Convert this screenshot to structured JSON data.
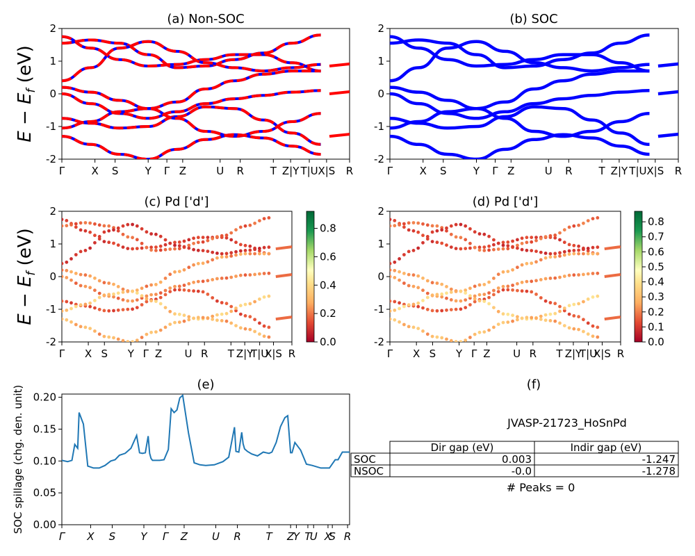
{
  "material_id": "JVASP-21723_HoSnPd",
  "kpath_labels": [
    "Γ",
    "X",
    "S",
    "Y",
    "Γ",
    "Z",
    "U",
    "R",
    "T",
    "Z|Y",
    "T|U",
    "X|S",
    "R"
  ],
  "kpath_labels_spillage": [
    "Γ",
    "X",
    "S",
    "Y",
    "Γ",
    "Z",
    "U",
    "R",
    "T",
    "Z",
    "Y",
    "T",
    "U",
    "X",
    "S",
    "R"
  ],
  "energy_ylabel_main": "E − E",
  "energy_ylabel_sub": "f",
  "energy_ylabel_unit": " (eV)",
  "energy_yticks": [
    2,
    1,
    0,
    -1,
    -2
  ],
  "colors": {
    "nsoc": "#ff0000",
    "soc": "#0000ff",
    "spillage": "#1f77b4"
  },
  "chart_data": [
    {
      "type": "line",
      "title": "(a) Non-SOC",
      "ylim": [
        -2,
        2
      ],
      "series": [
        {
          "values": [
            1.75,
            1.4,
            1.05,
            0.85,
            0.9,
            1.05,
            1.2,
            1.2,
            0.95,
            0.7
          ]
        },
        {
          "values": [
            1.55,
            1.65,
            1.55,
            1.2,
            0.8,
            0.85,
            1.05,
            1.25,
            1.55,
            1.8
          ]
        },
        {
          "values": [
            0.4,
            0.8,
            1.4,
            1.6,
            1.3,
            0.95,
            0.8,
            0.7,
            0.8,
            0.9
          ]
        },
        {
          "values": [
            0.2,
            0.05,
            -0.2,
            -0.45,
            -0.25,
            0.15,
            0.4,
            0.6,
            0.7,
            0.7
          ]
        },
        {
          "values": [
            0.0,
            -0.3,
            -0.6,
            -0.75,
            -0.55,
            -0.3,
            -0.15,
            -0.05,
            0.05,
            0.1
          ]
        },
        {
          "values": [
            -0.75,
            -0.9,
            -1.05,
            -1.0,
            -0.7,
            -0.4,
            -0.45,
            -0.8,
            -1.2,
            -1.55
          ]
        },
        {
          "values": [
            -1.05,
            -0.85,
            -0.55,
            -0.45,
            -0.75,
            -1.15,
            -1.3,
            -1.15,
            -0.85,
            -0.6
          ]
        },
        {
          "values": [
            -1.3,
            -1.55,
            -1.85,
            -2.0,
            -1.7,
            -1.4,
            -1.25,
            -1.35,
            -1.6,
            -1.85
          ]
        }
      ]
    },
    {
      "type": "line",
      "title": "(b) SOC",
      "ylim": [
        -2,
        2
      ],
      "series": [
        {
          "values": [
            1.75,
            1.4,
            1.05,
            0.85,
            0.9,
            1.05,
            1.2,
            1.2,
            0.95,
            0.7
          ]
        },
        {
          "values": [
            1.55,
            1.65,
            1.55,
            1.2,
            0.8,
            0.85,
            1.05,
            1.25,
            1.55,
            1.8
          ]
        },
        {
          "values": [
            0.4,
            0.8,
            1.4,
            1.6,
            1.3,
            0.95,
            0.8,
            0.7,
            0.8,
            0.9
          ]
        },
        {
          "values": [
            0.2,
            0.05,
            -0.2,
            -0.45,
            -0.25,
            0.15,
            0.4,
            0.6,
            0.7,
            0.7
          ]
        },
        {
          "values": [
            0.0,
            -0.3,
            -0.6,
            -0.75,
            -0.55,
            -0.3,
            -0.15,
            -0.05,
            0.05,
            0.1
          ]
        },
        {
          "values": [
            -0.75,
            -0.9,
            -1.05,
            -1.0,
            -0.7,
            -0.4,
            -0.45,
            -0.8,
            -1.2,
            -1.55
          ]
        },
        {
          "values": [
            -1.05,
            -0.85,
            -0.55,
            -0.45,
            -0.75,
            -1.15,
            -1.3,
            -1.15,
            -0.85,
            -0.6
          ]
        },
        {
          "values": [
            -1.3,
            -1.55,
            -1.85,
            -2.0,
            -1.7,
            -1.4,
            -1.25,
            -1.35,
            -1.6,
            -1.85
          ]
        }
      ]
    },
    {
      "type": "scatter",
      "title": "(c)  Pd ['d']",
      "ylim": [
        -2,
        2
      ],
      "colorbar": {
        "ticks": [
          "0.0",
          "0.2",
          "0.4",
          "0.6",
          "0.8"
        ],
        "max": 0.92,
        "cmap": "RdYlGn"
      }
    },
    {
      "type": "scatter",
      "title": "(d) Pd ['d']",
      "ylim": [
        -2,
        2
      ],
      "colorbar": {
        "ticks": [
          "0.0",
          "0.1",
          "0.2",
          "0.3",
          "0.4",
          "0.5",
          "0.6",
          "0.7",
          "0.8"
        ],
        "max": 0.87,
        "cmap": "RdYlGn"
      }
    },
    {
      "type": "line",
      "title": "(e)",
      "ylabel": "SOC spillage (chg. den. unit)",
      "ylim": [
        0,
        0.205
      ],
      "yticks": [
        "0.00",
        "0.05",
        "0.10",
        "0.15",
        "0.20"
      ],
      "x": [
        0,
        0.02,
        0.035,
        0.045,
        0.055,
        0.06,
        0.075,
        0.09,
        0.11,
        0.13,
        0.15,
        0.17,
        0.185,
        0.2,
        0.22,
        0.24,
        0.26,
        0.27,
        0.28,
        0.29,
        0.3,
        0.305,
        0.31,
        0.315,
        0.325,
        0.34,
        0.355,
        0.37,
        0.38,
        0.39,
        0.4,
        0.41,
        0.42,
        0.44,
        0.46,
        0.48,
        0.5,
        0.53,
        0.56,
        0.58,
        0.6,
        0.605,
        0.615,
        0.625,
        0.63,
        0.635,
        0.645,
        0.66,
        0.68,
        0.7,
        0.72,
        0.73,
        0.745,
        0.76,
        0.775,
        0.785,
        0.795,
        0.8,
        0.81,
        0.83,
        0.85,
        0.87,
        0.9,
        0.93,
        0.95,
        0.96,
        0.975,
        1.0
      ],
      "values": [
        0.101,
        0.099,
        0.101,
        0.126,
        0.12,
        0.176,
        0.158,
        0.092,
        0.089,
        0.089,
        0.093,
        0.1,
        0.102,
        0.109,
        0.112,
        0.12,
        0.14,
        0.113,
        0.112,
        0.113,
        0.139,
        0.112,
        0.104,
        0.101,
        0.101,
        0.101,
        0.102,
        0.118,
        0.182,
        0.176,
        0.18,
        0.199,
        0.203,
        0.144,
        0.097,
        0.094,
        0.093,
        0.094,
        0.099,
        0.106,
        0.153,
        0.115,
        0.114,
        0.145,
        0.127,
        0.119,
        0.115,
        0.111,
        0.108,
        0.114,
        0.112,
        0.114,
        0.129,
        0.154,
        0.168,
        0.171,
        0.113,
        0.113,
        0.129,
        0.117,
        0.095,
        0.093,
        0.089,
        0.089,
        0.102,
        0.102,
        0.114,
        0.114
      ]
    },
    {
      "type": "table",
      "title": "(f)",
      "headers": [
        "",
        "Dir gap (eV)",
        "Indir gap (eV)"
      ],
      "rows": [
        [
          "SOC",
          "0.003",
          "-1.247"
        ],
        [
          "NSOC",
          "-0.0",
          "-1.278"
        ]
      ],
      "footer": "# Peaks = 0"
    }
  ]
}
